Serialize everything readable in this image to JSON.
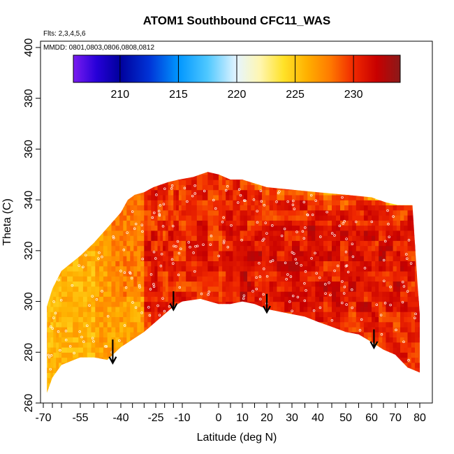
{
  "chart_data": {
    "type": "heatmap",
    "title": "ATOM1 Southbound CFC11_WAS",
    "subtitle_flights": "Flts: 2,3,4,5,6",
    "subtitle_dates": "MMDD: 0801,0803,0806,0808,0812",
    "xlabel": "Latitude (deg N)",
    "ylabel": "Theta (C)",
    "xlim": [
      -70,
      85
    ],
    "ylim": [
      260,
      405
    ],
    "x_tick_values": [
      -70,
      -55,
      -40,
      -25,
      -10,
      0,
      10,
      20,
      30,
      40,
      50,
      60,
      70,
      80
    ],
    "x_tick_labels": [
      "-70",
      "-55",
      "-40",
      "-25",
      "-10",
      "0",
      "10",
      "20",
      "30",
      "40",
      "50",
      "60",
      "70",
      "80"
    ],
    "x_minor_ticks": [
      -65,
      -60,
      -50,
      -45,
      -35,
      -30,
      -20,
      -15,
      -5,
      5,
      15,
      25,
      35,
      45,
      55,
      65,
      75
    ],
    "y_tick_values": [
      260,
      280,
      300,
      320,
      340,
      360,
      380,
      400
    ],
    "y_tick_labels": [
      "260",
      "280",
      "300",
      "320",
      "340",
      "360",
      "380",
      "400"
    ],
    "colorbar": {
      "range": [
        206,
        234
      ],
      "tick_values": [
        210,
        215,
        220,
        225,
        230
      ],
      "tick_labels": [
        "210",
        "215",
        "220",
        "225",
        "230"
      ],
      "stops": [
        {
          "value": 206,
          "color": "#7a1cf0"
        },
        {
          "value": 208,
          "color": "#2600d8"
        },
        {
          "value": 210,
          "color": "#00009c"
        },
        {
          "value": 212.5,
          "color": "#0033d6"
        },
        {
          "value": 215,
          "color": "#0096ff"
        },
        {
          "value": 217.5,
          "color": "#4fc8ff"
        },
        {
          "value": 220,
          "color": "#e6f5ff"
        },
        {
          "value": 222,
          "color": "#fff6b0"
        },
        {
          "value": 224,
          "color": "#ffe228"
        },
        {
          "value": 226,
          "color": "#ffb000"
        },
        {
          "value": 228,
          "color": "#ff7a00"
        },
        {
          "value": 230,
          "color": "#f02800"
        },
        {
          "value": 232,
          "color": "#c80000"
        },
        {
          "value": 234,
          "color": "#8a1a1a"
        }
      ]
    },
    "domain_top": [
      [
        -68,
        298
      ],
      [
        -65,
        305
      ],
      [
        -60,
        312
      ],
      [
        -55,
        318
      ],
      [
        -50,
        323
      ],
      [
        -45,
        329
      ],
      [
        -40,
        335
      ],
      [
        -37,
        340
      ],
      [
        -34,
        342
      ],
      [
        -30,
        343
      ],
      [
        -26,
        345
      ],
      [
        -22,
        346
      ],
      [
        -18,
        347
      ],
      [
        -12,
        348
      ],
      [
        -7,
        349
      ],
      [
        -3,
        351
      ],
      [
        0,
        350
      ],
      [
        5,
        348
      ],
      [
        10,
        348
      ],
      [
        20,
        345
      ],
      [
        30,
        344
      ],
      [
        40,
        343
      ],
      [
        50,
        342
      ],
      [
        60,
        341
      ],
      [
        66,
        339
      ],
      [
        71,
        338
      ],
      [
        77,
        338
      ],
      [
        78,
        323
      ],
      [
        79,
        308
      ],
      [
        80,
        295
      ],
      [
        80,
        272
      ]
    ],
    "domain_bottom": [
      [
        -68,
        264
      ],
      [
        -65,
        270
      ],
      [
        -60,
        275
      ],
      [
        -55,
        278
      ],
      [
        -50,
        278
      ],
      [
        -45,
        277
      ],
      [
        -40,
        282
      ],
      [
        -35,
        285
      ],
      [
        -30,
        288
      ],
      [
        -25,
        292
      ],
      [
        -20,
        295
      ],
      [
        -15,
        298
      ],
      [
        -10,
        300
      ],
      [
        -5,
        301
      ],
      [
        0,
        299
      ],
      [
        5,
        299
      ],
      [
        10,
        300
      ],
      [
        15,
        299
      ],
      [
        20,
        297
      ],
      [
        25,
        296
      ],
      [
        30,
        295
      ],
      [
        35,
        294
      ],
      [
        40,
        292
      ],
      [
        45,
        290
      ],
      [
        50,
        288
      ],
      [
        55,
        287
      ],
      [
        60,
        284
      ],
      [
        65,
        281
      ],
      [
        70,
        279
      ],
      [
        75,
        274
      ],
      [
        80,
        272
      ]
    ],
    "arrows": [
      {
        "lat": -43,
        "theta_top": 285,
        "theta_tip": 276
      },
      {
        "lat": -15,
        "theta_top": 304,
        "theta_tip": 297
      },
      {
        "lat": 20,
        "theta_top": 303,
        "theta_tip": 296
      },
      {
        "lat": 61,
        "theta_top": 289,
        "theta_tip": 282
      }
    ]
  }
}
